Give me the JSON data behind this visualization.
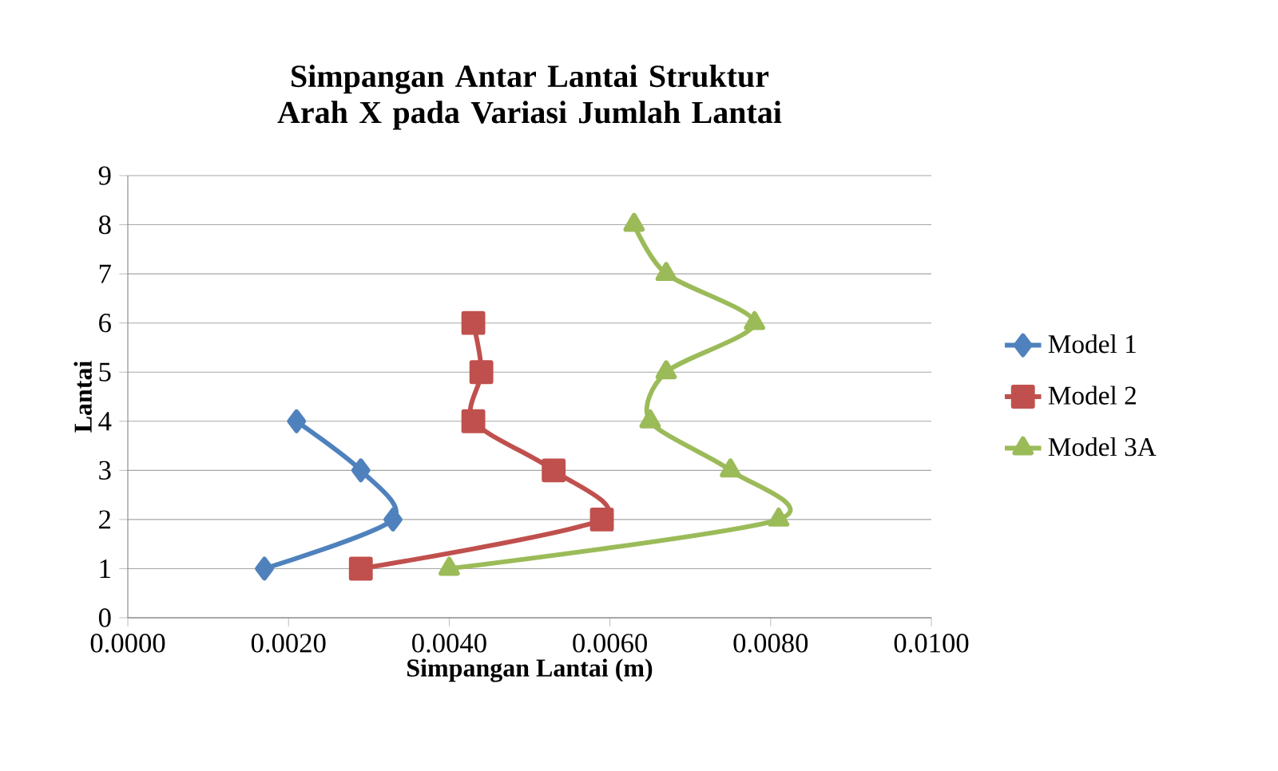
{
  "chart_data": {
    "type": "line",
    "title": "Simpangan Antar Lantai Struktur Arah X pada Variasi Jumlah Lantai",
    "xlabel": "Simpangan Lantai (m)",
    "ylabel": "Lantai",
    "xlim": [
      0,
      0.01
    ],
    "xticks": [
      {
        "value": 0,
        "label": "0.0000"
      },
      {
        "value": 0.002,
        "label": "0.0020"
      },
      {
        "value": 0.004,
        "label": "0.0040"
      },
      {
        "value": 0.006,
        "label": "0.0060"
      },
      {
        "value": 0.008,
        "label": "0.0080"
      },
      {
        "value": 0.01,
        "label": "0.0100"
      }
    ],
    "ylim": [
      0,
      9
    ],
    "yticks": [
      0,
      1,
      2,
      3,
      4,
      5,
      6,
      7,
      8,
      9
    ],
    "grid": "y",
    "legend": "right",
    "series": [
      {
        "name": "Model 1",
        "color": "#4f81bd",
        "marker": "diamond",
        "x": [
          0.0017,
          0.0033,
          0.0029,
          0.0021
        ],
        "values": [
          1,
          2,
          3,
          4
        ]
      },
      {
        "name": "Model 2",
        "color": "#c0504d",
        "marker": "square",
        "x": [
          0.0029,
          0.0059,
          0.0053,
          0.0043,
          0.0044,
          0.0043
        ],
        "values": [
          1,
          2,
          3,
          4,
          5,
          6
        ]
      },
      {
        "name": "Model 3A",
        "color": "#9bbb59",
        "marker": "triangle",
        "x": [
          0.004,
          0.0081,
          0.0075,
          0.0065,
          0.0067,
          0.0078,
          0.0067,
          0.0063
        ],
        "values": [
          1,
          2,
          3,
          4,
          5,
          6,
          7,
          8
        ]
      }
    ]
  }
}
